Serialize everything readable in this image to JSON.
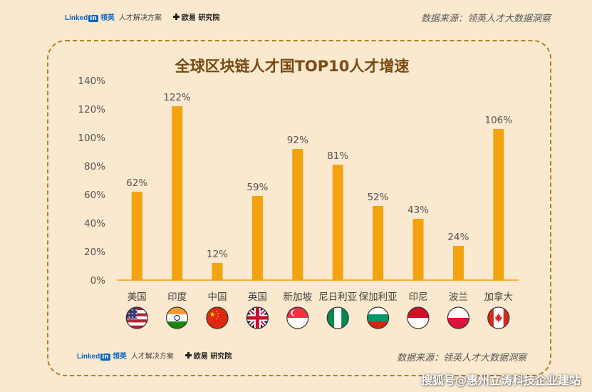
{
  "header": {
    "linkedin_word": "Linked",
    "linkedin_in": "in",
    "linkedin_cn": "领英",
    "tagline": "人才解决方案",
    "ouyi": "欧易 研究院",
    "source": "数据来源：领英人才大数据洞察"
  },
  "footer": {
    "linkedin_word": "Linked",
    "linkedin_in": "in",
    "linkedin_cn": "领英",
    "tagline": "人才解决方案",
    "ouyi": "欧易 研究院",
    "source": "数据来源：领英人才大数据洞察"
  },
  "watermark": "搜狐号@惠州立涛科技企业建站",
  "colors": {
    "bar": "#f2a30f",
    "background": "#fbe9cf",
    "frame": "#b5801f"
  },
  "chart_data": {
    "type": "bar",
    "title": "全球区块链人才国TOP10人才增速",
    "categories": [
      "美国",
      "印度",
      "中国",
      "英国",
      "新加坡",
      "尼日利亚",
      "保加利亚",
      "印尼",
      "波兰",
      "加拿大"
    ],
    "values": [
      62,
      122,
      12,
      59,
      92,
      81,
      52,
      43,
      24,
      106
    ],
    "value_labels": [
      "62%",
      "122%",
      "12%",
      "59%",
      "92%",
      "81%",
      "52%",
      "43%",
      "24%",
      "106%"
    ],
    "flag_icons": [
      "us-flag-icon",
      "india-flag-icon",
      "china-flag-icon",
      "uk-flag-icon",
      "singapore-flag-icon",
      "nigeria-flag-icon",
      "bulgaria-flag-icon",
      "indonesia-flag-icon",
      "poland-flag-icon",
      "canada-flag-icon"
    ],
    "ylim": [
      0,
      140
    ],
    "yticks": [
      "0%",
      "20%",
      "40%",
      "60%",
      "80%",
      "100%",
      "120%",
      "140%"
    ],
    "grid": false,
    "xlabel": "",
    "ylabel": ""
  }
}
